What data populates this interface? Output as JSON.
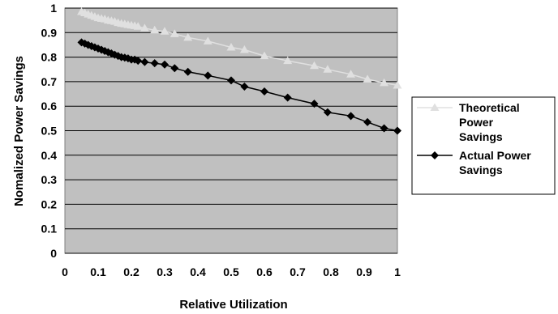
{
  "chart_data": {
    "type": "line",
    "title": "",
    "xlabel": "Relative Utilization",
    "ylabel": "Nomalized Power Savings",
    "xlim": [
      0,
      1
    ],
    "ylim": [
      0,
      1
    ],
    "x_ticks": [
      "0",
      "0.1",
      "0.2",
      "0.3",
      "0.4",
      "0.5",
      "0.6",
      "0.7",
      "0.8",
      "0.9",
      "1"
    ],
    "y_ticks": [
      "0",
      "0.1",
      "0.2",
      "0.3",
      "0.4",
      "0.5",
      "0.6",
      "0.7",
      "0.8",
      "0.9",
      "1"
    ],
    "grid": "horizontal",
    "plot_background": "#c0c0c0",
    "legend_position": "right",
    "series": [
      {
        "name": "Theoretical Power Savings",
        "legend_lines": [
          "Theoretical",
          "Power",
          "Savings"
        ],
        "color": "#e0e0e0",
        "marker": "triangle",
        "x": [
          0.05,
          0.06,
          0.07,
          0.08,
          0.09,
          0.1,
          0.11,
          0.12,
          0.13,
          0.14,
          0.15,
          0.16,
          0.17,
          0.18,
          0.19,
          0.2,
          0.21,
          0.22,
          0.24,
          0.27,
          0.3,
          0.33,
          0.37,
          0.43,
          0.5,
          0.54,
          0.6,
          0.67,
          0.75,
          0.79,
          0.86,
          0.91,
          0.96,
          1.0
        ],
        "y": [
          0.985,
          0.98,
          0.975,
          0.97,
          0.965,
          0.96,
          0.957,
          0.955,
          0.95,
          0.948,
          0.945,
          0.94,
          0.937,
          0.935,
          0.932,
          0.93,
          0.928,
          0.925,
          0.918,
          0.91,
          0.905,
          0.895,
          0.88,
          0.865,
          0.84,
          0.83,
          0.805,
          0.785,
          0.765,
          0.75,
          0.73,
          0.71,
          0.695,
          0.685
        ]
      },
      {
        "name": "Actual Power Savings",
        "legend_lines": [
          "Actual Power",
          "Savings"
        ],
        "color": "#000000",
        "marker": "diamond",
        "x": [
          0.05,
          0.06,
          0.07,
          0.08,
          0.09,
          0.1,
          0.11,
          0.12,
          0.13,
          0.14,
          0.15,
          0.16,
          0.17,
          0.18,
          0.19,
          0.2,
          0.21,
          0.22,
          0.24,
          0.27,
          0.3,
          0.33,
          0.37,
          0.43,
          0.5,
          0.54,
          0.6,
          0.67,
          0.75,
          0.79,
          0.86,
          0.91,
          0.96,
          1.0
        ],
        "y": [
          0.86,
          0.855,
          0.85,
          0.845,
          0.84,
          0.835,
          0.83,
          0.825,
          0.82,
          0.815,
          0.81,
          0.805,
          0.8,
          0.798,
          0.795,
          0.79,
          0.79,
          0.785,
          0.78,
          0.775,
          0.77,
          0.755,
          0.74,
          0.725,
          0.705,
          0.68,
          0.66,
          0.635,
          0.61,
          0.575,
          0.56,
          0.535,
          0.51,
          0.5
        ]
      }
    ]
  }
}
